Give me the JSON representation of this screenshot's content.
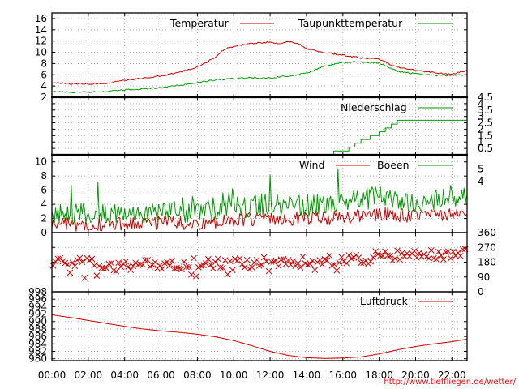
{
  "credit": "http://www.tieffliegen.de/wetter/",
  "x_axis": {
    "type": "time",
    "range": [
      "00:00",
      "22:50"
    ],
    "ticks": [
      "00:00",
      "02:00",
      "04:00",
      "06:00",
      "08:00",
      "10:00",
      "12:00",
      "14:00",
      "16:00",
      "18:00",
      "20:00",
      "22:00"
    ]
  },
  "colors": {
    "red": "#cc0000",
    "green": "#009900",
    "grid": "#a0a0a0"
  },
  "chart_data": [
    {
      "type": "line",
      "title": "",
      "ylabel": "",
      "ylim": [
        2,
        17
      ],
      "grid": true,
      "legend_position": "top-right",
      "yticks": [
        "2",
        "4",
        "6",
        "8",
        "10",
        "12",
        "14",
        "16"
      ],
      "series": [
        {
          "name": "Temperatur",
          "color": "#cc0000",
          "x": [
            "00:00",
            "01:00",
            "02:00",
            "03:00",
            "04:00",
            "05:00",
            "06:00",
            "07:00",
            "08:00",
            "08:30",
            "09:00",
            "09:30",
            "10:00",
            "11:00",
            "12:00",
            "12:30",
            "13:00",
            "13:30",
            "14:00",
            "15:00",
            "16:00",
            "17:00",
            "18:00",
            "18:30",
            "19:00",
            "20:00",
            "21:00",
            "22:00",
            "22:50"
          ],
          "y": [
            4.6,
            4.4,
            4.4,
            4.5,
            5.0,
            5.4,
            5.8,
            6.4,
            7.4,
            8.2,
            9.2,
            10.6,
            11.0,
            11.6,
            11.8,
            11.5,
            11.9,
            11.6,
            10.7,
            9.9,
            9.5,
            9.0,
            8.8,
            8.0,
            7.3,
            6.8,
            6.4,
            6.1,
            6.8
          ]
        },
        {
          "name": "Taupunkttemperatur",
          "color": "#009900",
          "x": [
            "00:00",
            "01:00",
            "02:00",
            "03:00",
            "04:00",
            "05:00",
            "06:00",
            "07:00",
            "08:00",
            "09:00",
            "10:00",
            "11:00",
            "12:00",
            "13:00",
            "14:00",
            "15:00",
            "16:00",
            "17:00",
            "18:00",
            "18:30",
            "19:00",
            "20:00",
            "21:00",
            "22:00",
            "22:50"
          ],
          "y": [
            3.0,
            2.9,
            2.9,
            3.0,
            3.3,
            3.5,
            3.7,
            4.1,
            4.6,
            5.1,
            5.3,
            5.5,
            5.4,
            5.8,
            6.3,
            7.5,
            8.2,
            8.3,
            8.1,
            7.4,
            6.6,
            6.2,
            5.9,
            5.9,
            6.0
          ]
        }
      ]
    },
    {
      "type": "line",
      "title": "",
      "ylabel": "",
      "ylim": [
        0,
        4.5
      ],
      "grid": true,
      "legend_position": "top-right",
      "yticks": [
        "0.5",
        "1",
        "1.5",
        "2",
        "2.5",
        "3",
        "3.5",
        "4",
        "4.5"
      ],
      "series": [
        {
          "name": "Niederschlag",
          "color": "#009900",
          "x": [
            "00:00",
            "14:00",
            "15:00",
            "15:30",
            "16:00",
            "16:20",
            "16:40",
            "17:00",
            "17:30",
            "18:00",
            "18:20",
            "18:40",
            "19:00",
            "19:30",
            "22:50"
          ],
          "y": [
            0,
            0,
            0,
            0.3,
            0.3,
            0.6,
            0.9,
            1.2,
            1.5,
            1.8,
            2.1,
            2.4,
            2.7,
            2.7,
            2.7
          ]
        }
      ]
    },
    {
      "type": "line",
      "title": "",
      "ylabel": "",
      "ylim": [
        0,
        11
      ],
      "y2lim": [
        0,
        6.11
      ],
      "grid": true,
      "legend_position": "top-right",
      "yticks": [
        "0",
        "2",
        "4",
        "6",
        "8",
        "10"
      ],
      "y2ticks": [
        "4",
        "5"
      ],
      "series": [
        {
          "name": "Wind",
          "color": "#cc0000",
          "x": [
            "00:00",
            "02:00",
            "04:00",
            "06:00",
            "08:00",
            "10:00",
            "12:00",
            "14:00",
            "16:00",
            "18:00",
            "20:00",
            "22:00",
            "22:50"
          ],
          "y": [
            1.3,
            1.1,
            1.2,
            1.4,
            1.4,
            1.7,
            2.1,
            1.9,
            2.1,
            2.7,
            2.3,
            2.6,
            2.9
          ]
        },
        {
          "name": "Boeen",
          "color": "#009900",
          "x": [
            "00:00",
            "02:00",
            "04:00",
            "06:00",
            "08:00",
            "10:00",
            "12:00",
            "14:00",
            "16:00",
            "18:00",
            "20:00",
            "22:00",
            "22:50"
          ],
          "y": [
            2.8,
            2.6,
            2.6,
            2.9,
            3.1,
            3.4,
            4.1,
            3.8,
            4.4,
            5.0,
            4.4,
            5.2,
            5.3
          ]
        }
      ]
    },
    {
      "type": "scatter",
      "title": "",
      "ylabel": "",
      "ylim": [
        0,
        360
      ],
      "grid": true,
      "yticks": [
        "0",
        "90",
        "180",
        "270",
        "360"
      ],
      "series": [
        {
          "name": "",
          "color": "#cc0000",
          "x": [
            "00:00",
            "02:00",
            "04:00",
            "06:00",
            "08:00",
            "10:00",
            "12:00",
            "14:00",
            "16:00",
            "18:00",
            "20:00",
            "22:00",
            "22:50"
          ],
          "y": [
            175,
            175,
            150,
            170,
            175,
            165,
            180,
            180,
            195,
            215,
            225,
            230,
            230
          ]
        }
      ]
    },
    {
      "type": "line",
      "title": "",
      "ylabel": "",
      "ylim": [
        979.5,
        998
      ],
      "grid": true,
      "legend_position": "top-right",
      "yticks": [
        "980",
        "982",
        "984",
        "986",
        "988",
        "990",
        "992",
        "994",
        "996",
        "998"
      ],
      "series": [
        {
          "name": "Luftdruck",
          "color": "#cc0000",
          "x": [
            "00:00",
            "01:00",
            "02:00",
            "03:00",
            "04:00",
            "05:00",
            "06:00",
            "07:00",
            "08:00",
            "09:00",
            "10:00",
            "11:00",
            "12:00",
            "13:00",
            "14:00",
            "15:00",
            "16:00",
            "17:00",
            "18:00",
            "19:00",
            "20:00",
            "21:00",
            "22:00",
            "22:50"
          ],
          "y": [
            991.8,
            991.1,
            990.3,
            989.5,
            988.7,
            988.0,
            987.5,
            987.1,
            986.6,
            985.9,
            984.9,
            983.5,
            982.0,
            980.9,
            980.3,
            980.1,
            980.2,
            980.5,
            981.3,
            982.4,
            983.3,
            984.0,
            984.6,
            985.3
          ]
        }
      ]
    }
  ]
}
